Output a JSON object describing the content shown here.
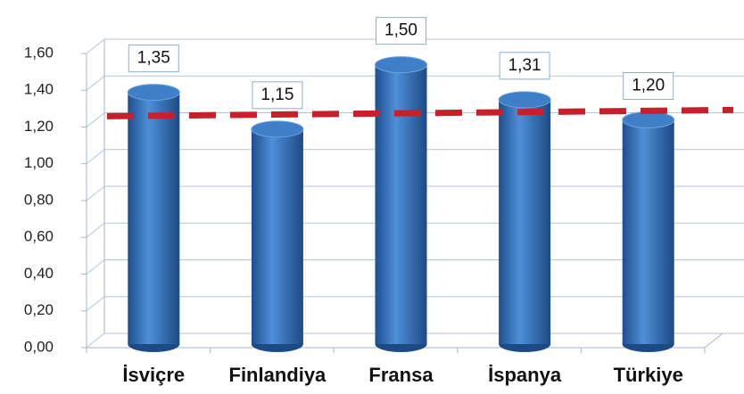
{
  "chart_data": {
    "type": "bar",
    "categories": [
      "İsviçre",
      "Finlandiya",
      "Fransa",
      "İspanya",
      "Türkiye"
    ],
    "values": [
      1.35,
      1.15,
      1.5,
      1.31,
      1.2
    ],
    "value_labels": [
      "1,35",
      "1,15",
      "1,50",
      "1,31",
      "1,20"
    ],
    "color": "#2f6db5",
    "ylim": [
      0,
      1.6
    ],
    "yticks": [
      {
        "value": 0,
        "label": "0,00"
      },
      {
        "value": 0.2,
        "label": "0,20"
      },
      {
        "value": 0.4,
        "label": "0,40"
      },
      {
        "value": 0.6,
        "label": "0,60"
      },
      {
        "value": 0.8,
        "label": "0,80"
      },
      {
        "value": 1.0,
        "label": "1,00"
      },
      {
        "value": 1.2,
        "label": "1,20"
      },
      {
        "value": 1.4,
        "label": "1,40"
      },
      {
        "value": 1.6,
        "label": "1,60"
      }
    ],
    "grid": true,
    "reference_line": {
      "value": 1.22,
      "color": "#c8202a"
    }
  }
}
